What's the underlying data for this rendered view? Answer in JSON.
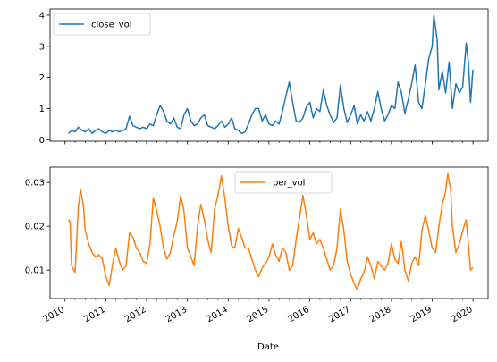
{
  "chart_data": [
    {
      "type": "line",
      "series": [
        {
          "name": "close_vol",
          "color": "#1f77b4",
          "points": [
            [
              "2010-02-01",
              0.2
            ],
            [
              "2010-03-01",
              0.3
            ],
            [
              "2010-04-01",
              0.25
            ],
            [
              "2010-05-01",
              0.4
            ],
            [
              "2010-06-01",
              0.3
            ],
            [
              "2010-07-01",
              0.25
            ],
            [
              "2010-08-01",
              0.35
            ],
            [
              "2010-09-01",
              0.2
            ],
            [
              "2010-10-01",
              0.3
            ],
            [
              "2010-11-01",
              0.35
            ],
            [
              "2010-12-01",
              0.25
            ],
            [
              "2011-01-01",
              0.2
            ],
            [
              "2011-02-01",
              0.3
            ],
            [
              "2011-03-01",
              0.25
            ],
            [
              "2011-04-01",
              0.3
            ],
            [
              "2011-05-01",
              0.25
            ],
            [
              "2011-06-01",
              0.3
            ],
            [
              "2011-07-01",
              0.35
            ],
            [
              "2011-08-01",
              0.75
            ],
            [
              "2011-09-01",
              0.45
            ],
            [
              "2011-10-01",
              0.4
            ],
            [
              "2011-11-01",
              0.35
            ],
            [
              "2011-12-01",
              0.4
            ],
            [
              "2012-01-01",
              0.35
            ],
            [
              "2012-02-01",
              0.5
            ],
            [
              "2012-03-01",
              0.45
            ],
            [
              "2012-04-01",
              0.8
            ],
            [
              "2012-05-01",
              1.1
            ],
            [
              "2012-06-01",
              0.9
            ],
            [
              "2012-07-01",
              0.6
            ],
            [
              "2012-08-01",
              0.5
            ],
            [
              "2012-09-01",
              0.7
            ],
            [
              "2012-10-01",
              0.4
            ],
            [
              "2012-11-01",
              0.35
            ],
            [
              "2012-12-01",
              0.8
            ],
            [
              "2013-01-01",
              1.0
            ],
            [
              "2013-02-01",
              0.6
            ],
            [
              "2013-03-01",
              0.45
            ],
            [
              "2013-04-01",
              0.5
            ],
            [
              "2013-05-01",
              0.7
            ],
            [
              "2013-06-01",
              0.8
            ],
            [
              "2013-07-01",
              0.45
            ],
            [
              "2013-08-01",
              0.4
            ],
            [
              "2013-09-01",
              0.35
            ],
            [
              "2013-10-01",
              0.45
            ],
            [
              "2013-11-01",
              0.6
            ],
            [
              "2013-12-01",
              0.4
            ],
            [
              "2014-01-01",
              0.5
            ],
            [
              "2014-02-01",
              0.7
            ],
            [
              "2014-03-01",
              0.35
            ],
            [
              "2014-04-01",
              0.3
            ],
            [
              "2014-05-01",
              0.2
            ],
            [
              "2014-06-01",
              0.25
            ],
            [
              "2014-07-01",
              0.5
            ],
            [
              "2014-08-01",
              0.8
            ],
            [
              "2014-09-01",
              1.0
            ],
            [
              "2014-10-01",
              1.0
            ],
            [
              "2014-11-01",
              0.6
            ],
            [
              "2014-12-01",
              0.8
            ],
            [
              "2015-01-01",
              0.5
            ],
            [
              "2015-02-01",
              0.45
            ],
            [
              "2015-03-01",
              0.6
            ],
            [
              "2015-04-01",
              0.5
            ],
            [
              "2015-05-01",
              0.9
            ],
            [
              "2015-06-01",
              1.4
            ],
            [
              "2015-07-01",
              1.85
            ],
            [
              "2015-08-01",
              1.2
            ],
            [
              "2015-09-01",
              0.6
            ],
            [
              "2015-10-01",
              0.55
            ],
            [
              "2015-11-01",
              0.7
            ],
            [
              "2015-12-01",
              1.05
            ],
            [
              "2016-01-01",
              1.2
            ],
            [
              "2016-02-01",
              0.7
            ],
            [
              "2016-03-01",
              1.0
            ],
            [
              "2016-04-01",
              0.9
            ],
            [
              "2016-05-01",
              1.6
            ],
            [
              "2016-06-01",
              1.1
            ],
            [
              "2016-07-01",
              0.8
            ],
            [
              "2016-08-01",
              0.55
            ],
            [
              "2016-09-01",
              0.7
            ],
            [
              "2016-10-01",
              1.75
            ],
            [
              "2016-11-01",
              1.0
            ],
            [
              "2016-12-01",
              0.55
            ],
            [
              "2017-01-01",
              0.8
            ],
            [
              "2017-02-01",
              1.1
            ],
            [
              "2017-03-01",
              0.5
            ],
            [
              "2017-04-01",
              0.8
            ],
            [
              "2017-05-01",
              0.6
            ],
            [
              "2017-06-01",
              0.9
            ],
            [
              "2017-07-01",
              0.6
            ],
            [
              "2017-08-01",
              1.0
            ],
            [
              "2017-09-01",
              1.55
            ],
            [
              "2017-10-01",
              1.0
            ],
            [
              "2017-11-01",
              0.6
            ],
            [
              "2017-12-01",
              0.8
            ],
            [
              "2018-01-01",
              1.1
            ],
            [
              "2018-02-01",
              1.0
            ],
            [
              "2018-03-01",
              1.85
            ],
            [
              "2018-04-01",
              1.5
            ],
            [
              "2018-05-01",
              0.85
            ],
            [
              "2018-06-01",
              1.3
            ],
            [
              "2018-07-01",
              1.8
            ],
            [
              "2018-08-01",
              2.4
            ],
            [
              "2018-09-01",
              1.2
            ],
            [
              "2018-10-01",
              1.0
            ],
            [
              "2018-11-01",
              1.8
            ],
            [
              "2018-12-01",
              2.6
            ],
            [
              "2019-01-01",
              3.0
            ],
            [
              "2019-01-15",
              4.0
            ],
            [
              "2019-02-15",
              3.2
            ],
            [
              "2019-03-01",
              1.6
            ],
            [
              "2019-04-01",
              2.2
            ],
            [
              "2019-05-01",
              1.5
            ],
            [
              "2019-06-01",
              2.5
            ],
            [
              "2019-07-01",
              1.0
            ],
            [
              "2019-08-01",
              1.8
            ],
            [
              "2019-09-01",
              1.5
            ],
            [
              "2019-10-01",
              1.7
            ],
            [
              "2019-11-01",
              3.1
            ],
            [
              "2019-11-20",
              2.5
            ],
            [
              "2019-12-10",
              1.2
            ],
            [
              "2019-12-31",
              2.25
            ]
          ]
        }
      ],
      "legend": "upper left",
      "ylim": [
        -0.05,
        4.2
      ],
      "yticks": [
        "0",
        "1",
        "2",
        "3",
        "4"
      ]
    },
    {
      "type": "line",
      "series": [
        {
          "name": "per_vol",
          "color": "#ff7f0e",
          "points": [
            [
              "2010-02-01",
              0.0215
            ],
            [
              "2010-02-15",
              0.021
            ],
            [
              "2010-03-01",
              0.011
            ],
            [
              "2010-04-01",
              0.0095
            ],
            [
              "2010-05-01",
              0.0245
            ],
            [
              "2010-05-20",
              0.0285
            ],
            [
              "2010-06-15",
              0.0245
            ],
            [
              "2010-07-01",
              0.019
            ],
            [
              "2010-08-01",
              0.016
            ],
            [
              "2010-09-01",
              0.014
            ],
            [
              "2010-10-01",
              0.013
            ],
            [
              "2010-11-01",
              0.0135
            ],
            [
              "2010-12-01",
              0.0125
            ],
            [
              "2011-01-01",
              0.0085
            ],
            [
              "2011-02-01",
              0.0065
            ],
            [
              "2011-03-01",
              0.011
            ],
            [
              "2011-04-01",
              0.015
            ],
            [
              "2011-05-01",
              0.012
            ],
            [
              "2011-06-01",
              0.01
            ],
            [
              "2011-07-01",
              0.011
            ],
            [
              "2011-08-01",
              0.0185
            ],
            [
              "2011-09-01",
              0.0175
            ],
            [
              "2011-10-01",
              0.015
            ],
            [
              "2011-11-01",
              0.014
            ],
            [
              "2011-12-01",
              0.012
            ],
            [
              "2012-01-01",
              0.0115
            ],
            [
              "2012-02-01",
              0.016
            ],
            [
              "2012-03-01",
              0.0265
            ],
            [
              "2012-04-01",
              0.0235
            ],
            [
              "2012-05-01",
              0.02
            ],
            [
              "2012-06-01",
              0.015
            ],
            [
              "2012-07-01",
              0.0125
            ],
            [
              "2012-08-01",
              0.014
            ],
            [
              "2012-09-01",
              0.018
            ],
            [
              "2012-10-01",
              0.021
            ],
            [
              "2012-11-01",
              0.027
            ],
            [
              "2012-12-01",
              0.0235
            ],
            [
              "2013-01-01",
              0.015
            ],
            [
              "2013-02-01",
              0.013
            ],
            [
              "2013-03-01",
              0.011
            ],
            [
              "2013-04-01",
              0.02
            ],
            [
              "2013-05-01",
              0.025
            ],
            [
              "2013-06-01",
              0.0215
            ],
            [
              "2013-07-01",
              0.017
            ],
            [
              "2013-08-01",
              0.014
            ],
            [
              "2013-09-01",
              0.024
            ],
            [
              "2013-10-01",
              0.027
            ],
            [
              "2013-11-01",
              0.0315
            ],
            [
              "2013-12-01",
              0.0265
            ],
            [
              "2014-01-01",
              0.02
            ],
            [
              "2014-02-01",
              0.0155
            ],
            [
              "2014-03-01",
              0.015
            ],
            [
              "2014-04-01",
              0.0195
            ],
            [
              "2014-05-01",
              0.0175
            ],
            [
              "2014-06-01",
              0.015
            ],
            [
              "2014-07-01",
              0.015
            ],
            [
              "2014-08-01",
              0.0125
            ],
            [
              "2014-09-01",
              0.01
            ],
            [
              "2014-10-01",
              0.0085
            ],
            [
              "2014-11-01",
              0.0105
            ],
            [
              "2014-12-01",
              0.0115
            ],
            [
              "2015-01-01",
              0.013
            ],
            [
              "2015-02-01",
              0.016
            ],
            [
              "2015-03-01",
              0.0135
            ],
            [
              "2015-04-01",
              0.012
            ],
            [
              "2015-05-01",
              0.015
            ],
            [
              "2015-06-01",
              0.014
            ],
            [
              "2015-07-01",
              0.01
            ],
            [
              "2015-08-01",
              0.011
            ],
            [
              "2015-09-01",
              0.017
            ],
            [
              "2015-10-01",
              0.022
            ],
            [
              "2015-11-01",
              0.027
            ],
            [
              "2015-12-01",
              0.0225
            ],
            [
              "2016-01-01",
              0.017
            ],
            [
              "2016-02-01",
              0.0185
            ],
            [
              "2016-03-01",
              0.016
            ],
            [
              "2016-04-01",
              0.017
            ],
            [
              "2016-05-01",
              0.015
            ],
            [
              "2016-06-01",
              0.0125
            ],
            [
              "2016-07-01",
              0.01
            ],
            [
              "2016-08-01",
              0.011
            ],
            [
              "2016-09-01",
              0.015
            ],
            [
              "2016-10-01",
              0.024
            ],
            [
              "2016-11-01",
              0.019
            ],
            [
              "2016-12-01",
              0.012
            ],
            [
              "2017-01-01",
              0.009
            ],
            [
              "2017-02-01",
              0.007
            ],
            [
              "2017-03-01",
              0.0055
            ],
            [
              "2017-04-01",
              0.008
            ],
            [
              "2017-05-01",
              0.0095
            ],
            [
              "2017-06-01",
              0.013
            ],
            [
              "2017-07-01",
              0.011
            ],
            [
              "2017-08-01",
              0.008
            ],
            [
              "2017-09-01",
              0.012
            ],
            [
              "2017-10-01",
              0.011
            ],
            [
              "2017-11-01",
              0.01
            ],
            [
              "2017-12-01",
              0.0115
            ],
            [
              "2018-01-01",
              0.016
            ],
            [
              "2018-02-01",
              0.0125
            ],
            [
              "2018-03-01",
              0.0115
            ],
            [
              "2018-04-01",
              0.0165
            ],
            [
              "2018-05-01",
              0.01
            ],
            [
              "2018-06-01",
              0.0075
            ],
            [
              "2018-07-01",
              0.0115
            ],
            [
              "2018-08-01",
              0.013
            ],
            [
              "2018-09-01",
              0.011
            ],
            [
              "2018-10-01",
              0.019
            ],
            [
              "2018-11-01",
              0.0225
            ],
            [
              "2018-12-01",
              0.019
            ],
            [
              "2019-01-01",
              0.015
            ],
            [
              "2019-02-01",
              0.014
            ],
            [
              "2019-03-01",
              0.02
            ],
            [
              "2019-04-01",
              0.025
            ],
            [
              "2019-05-01",
              0.028
            ],
            [
              "2019-05-20",
              0.032
            ],
            [
              "2019-06-15",
              0.0285
            ],
            [
              "2019-07-01",
              0.02
            ],
            [
              "2019-08-01",
              0.014
            ],
            [
              "2019-09-01",
              0.016
            ],
            [
              "2019-10-01",
              0.019
            ],
            [
              "2019-11-01",
              0.0215
            ],
            [
              "2019-11-20",
              0.016
            ],
            [
              "2019-12-10",
              0.01
            ],
            [
              "2019-12-31",
              0.0105
            ]
          ]
        }
      ],
      "legend": "upper center",
      "ylim": [
        0.0035,
        0.0335
      ],
      "yticks": [
        "0.01",
        "0.02",
        "0.03"
      ]
    }
  ],
  "xaxis": {
    "label": "Date",
    "tick_labels": [
      "2010",
      "2011",
      "2012",
      "2013",
      "2014",
      "2015",
      "2016",
      "2017",
      "2018",
      "2019",
      "2020"
    ],
    "range": [
      "2009-08-20",
      "2020-05-15"
    ]
  }
}
